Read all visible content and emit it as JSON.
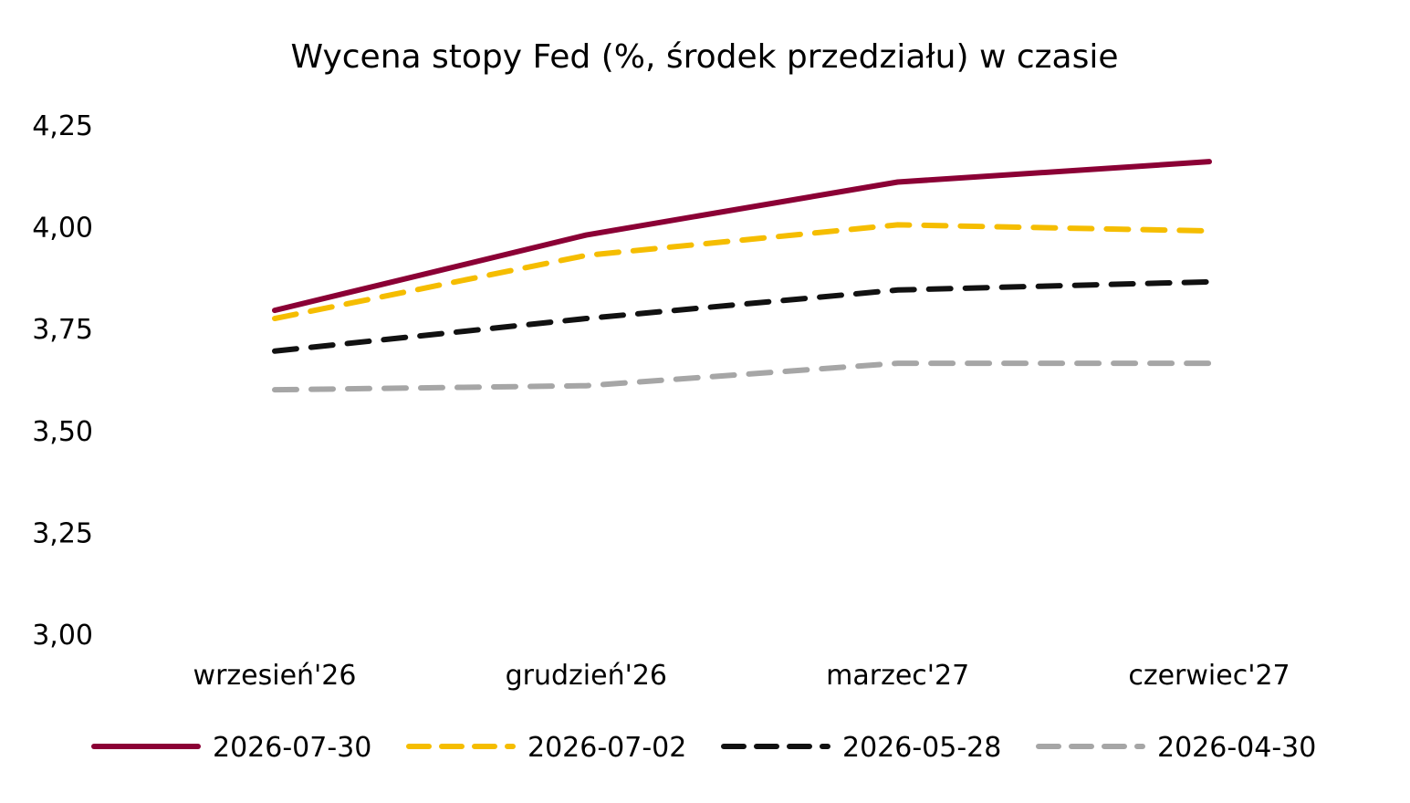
{
  "chart_data": {
    "type": "line",
    "title": "Wycena stopy Fed (%, środek przedziału) w czasie",
    "xlabel": "",
    "ylabel": "",
    "categories": [
      "wrzesień'26",
      "grudzień'26",
      "marzec'27",
      "czerwiec'27"
    ],
    "ylim": [
      3.0,
      4.25
    ],
    "yticks": [
      3.0,
      3.25,
      3.5,
      3.75,
      4.0,
      4.25
    ],
    "ytick_labels": [
      "3,00",
      "3,25",
      "3,50",
      "3,75",
      "4,00",
      "4,25"
    ],
    "grid": false,
    "legend_position": "bottom",
    "series": [
      {
        "name": "2026-07-30",
        "values": [
          3.795,
          3.98,
          4.11,
          4.16
        ],
        "color": "#8B0035",
        "style": "solid"
      },
      {
        "name": "2026-07-02",
        "values": [
          3.775,
          3.93,
          4.005,
          3.99
        ],
        "color": "#F5BD00",
        "style": "dashed"
      },
      {
        "name": "2026-05-28",
        "values": [
          3.695,
          3.775,
          3.845,
          3.865
        ],
        "color": "#111111",
        "style": "dashed"
      },
      {
        "name": "2026-04-30",
        "values": [
          3.6,
          3.61,
          3.665,
          3.665
        ],
        "color": "#A6A6A6",
        "style": "dashed"
      }
    ]
  }
}
